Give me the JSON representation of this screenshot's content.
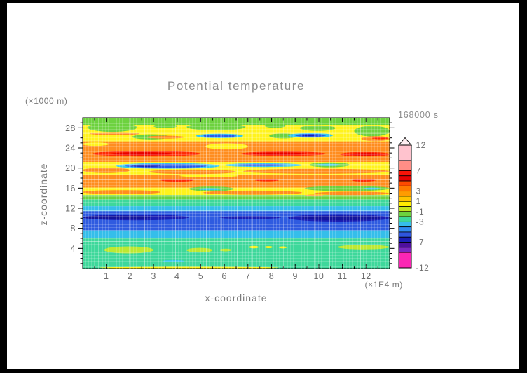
{
  "window": {
    "frame_color": "#000000",
    "page_color": "#ffffff"
  },
  "title": "Potential temperature",
  "time_label": "168000 s",
  "chart_data": {
    "type": "heatmap",
    "subtype": "filled-contour-cross-section",
    "title": "Potential temperature",
    "time_label": "168000 s",
    "xlabel": "x-coordinate",
    "x_unit": "(×1E4 m)",
    "ylabel": "z-coordinate",
    "y_unit": "(×1000 m)",
    "xlim": [
      0,
      13
    ],
    "ylim": [
      0,
      30
    ],
    "x_ticks": [
      1,
      2,
      3,
      4,
      5,
      6,
      7,
      8,
      9,
      10,
      11,
      12
    ],
    "x_minor_step": 0.5,
    "y_ticks": [
      4,
      8,
      12,
      16,
      20,
      24,
      28
    ],
    "y_minor_step": 1,
    "grid": true,
    "legend_position": "right",
    "colorbar": {
      "range": [
        -12,
        12
      ],
      "boundaries": [
        12,
        9,
        7,
        6,
        5,
        4,
        3,
        2,
        1,
        0,
        -1,
        -2,
        -3,
        -4,
        -5,
        -6,
        -7,
        -8,
        -9,
        -12
      ],
      "colors": [
        "#FFC3CE",
        "#FF8E86",
        "#F81408",
        "#E60202",
        "#FF4A00",
        "#FF7A00",
        "#FF9C00",
        "#FFC400",
        "#FFEC00",
        "#C3E51E",
        "#6DD23F",
        "#3ED89B",
        "#35BEEA",
        "#2F8BF0",
        "#2E56DE",
        "#1B1EB4",
        "#4E0F9E",
        "#7B28C2",
        "#FB26B4"
      ],
      "tick_labels": [
        {
          "value": 12,
          "label": "12"
        },
        {
          "value": 7,
          "label": "7"
        },
        {
          "value": 3,
          "label": "3"
        },
        {
          "value": 1,
          "label": "1"
        },
        {
          "value": -1,
          "label": "-1"
        },
        {
          "value": -3,
          "label": "-3"
        },
        {
          "value": -7,
          "label": "-7"
        },
        {
          "value": -12,
          "label": "-12"
        }
      ],
      "arrow_fill": "#FFEFF2"
    },
    "bands": [
      [
        30,
        28.6,
        "#6DD23F"
      ],
      [
        28.6,
        25.3,
        "#FFF31C"
      ],
      [
        25.3,
        21.2,
        "#FF8D1F"
      ],
      [
        21.2,
        18.6,
        "#FFF31C"
      ],
      [
        18.6,
        16.1,
        "#FF8D1F"
      ],
      [
        16.1,
        14.65,
        "#FFF31C"
      ],
      [
        14.65,
        13.75,
        "#6DD23F"
      ],
      [
        13.75,
        12.4,
        "#3ED89B"
      ],
      [
        12.4,
        11.4,
        "#35BEEA"
      ],
      [
        11.4,
        7.6,
        "#2F5BE0"
      ],
      [
        7.6,
        6.1,
        "#35BEEA"
      ],
      [
        6.1,
        0,
        "#3ED89B"
      ]
    ],
    "features": [
      [
        0.2,
        2.3,
        27.2,
        29.0,
        "#6DD23F"
      ],
      [
        3.0,
        4.0,
        27.9,
        28.8,
        "#6DD23F"
      ],
      [
        4.4,
        6.9,
        27.5,
        28.9,
        "#6DD23F"
      ],
      [
        7.7,
        8.6,
        28.0,
        28.85,
        "#6DD23F"
      ],
      [
        9.2,
        10.7,
        27.4,
        28.5,
        "#6DD23F"
      ],
      [
        11.5,
        13,
        26.3,
        28.4,
        "#6DD23F"
      ],
      [
        2.1,
        3.7,
        25.7,
        26.7,
        "#6DD23F"
      ],
      [
        7.9,
        9.1,
        25.9,
        26.9,
        "#6DD23F"
      ],
      [
        0.3,
        2.4,
        26.55,
        27.15,
        "#FF8D1F"
      ],
      [
        2.7,
        4.3,
        25.85,
        26.45,
        "#FF8D1F"
      ],
      [
        11.8,
        13,
        25.35,
        26.35,
        "#FF8D1F"
      ],
      [
        12.25,
        12.95,
        25.75,
        26.15,
        "#FF2B06"
      ],
      [
        4.8,
        6.8,
        25.95,
        26.85,
        "#35C8F0"
      ],
      [
        5.1,
        6.5,
        26.1,
        26.7,
        "#2B5BE8"
      ],
      [
        8.7,
        10.6,
        26.05,
        26.95,
        "#35C8F0"
      ],
      [
        9.0,
        10.3,
        26.2,
        26.8,
        "#2B5BE8"
      ],
      [
        9.3,
        9.9,
        26.35,
        26.62,
        "#1B1EB4"
      ],
      [
        0.4,
        5.0,
        22.3,
        23.4,
        "#FF2B06"
      ],
      [
        1.2,
        3.8,
        22.55,
        23.15,
        "#E80000"
      ],
      [
        6.7,
        10.3,
        22.4,
        23.3,
        "#FF2B06"
      ],
      [
        7.1,
        9.5,
        22.6,
        23.1,
        "#E80000"
      ],
      [
        10.9,
        13,
        22.3,
        23.2,
        "#FF2B06"
      ],
      [
        11.3,
        12.7,
        22.5,
        23.0,
        "#E80000"
      ],
      [
        5.2,
        7.0,
        23.7,
        24.9,
        "#FFF31C"
      ],
      [
        0.0,
        1.1,
        24.4,
        25.1,
        "#FFF31C"
      ],
      [
        0,
        2.0,
        19.0,
        20.1,
        "#FF8D1F"
      ],
      [
        2.8,
        6.5,
        18.8,
        19.7,
        "#FF8D1F"
      ],
      [
        6.8,
        13,
        18.85,
        19.85,
        "#FF8D1F"
      ],
      [
        1.4,
        5.8,
        19.85,
        21.0,
        "#35C8F0"
      ],
      [
        1.8,
        5.3,
        20.05,
        20.8,
        "#2B5BE8"
      ],
      [
        2.1,
        3.3,
        20.25,
        20.62,
        "#1B1EB4"
      ],
      [
        6.0,
        9.3,
        20.2,
        20.95,
        "#35C8F0"
      ],
      [
        6.4,
        8.7,
        20.35,
        20.8,
        "#2B5BE8"
      ],
      [
        9.6,
        11.3,
        20.15,
        21.1,
        "#6DD23F"
      ],
      [
        9.9,
        10.9,
        20.4,
        20.85,
        "#35C8F0"
      ],
      [
        3.3,
        4.7,
        17.3,
        17.85,
        "#FF2B06"
      ],
      [
        7.3,
        8.3,
        17.35,
        17.8,
        "#FF2B06"
      ],
      [
        11.4,
        12.4,
        17.3,
        17.8,
        "#FF2B06"
      ],
      [
        4.1,
        6.6,
        18.2,
        18.7,
        "#FFF31C"
      ],
      [
        0,
        3.3,
        14.8,
        15.6,
        "#FF8D1F"
      ],
      [
        5.1,
        9.3,
        14.7,
        15.5,
        "#FF8D1F"
      ],
      [
        9.8,
        13,
        14.6,
        15.3,
        "#FF8D1F"
      ],
      [
        4.5,
        6.4,
        15.4,
        16.3,
        "#6DD23F"
      ],
      [
        4.9,
        5.9,
        15.6,
        16.0,
        "#35C8F0"
      ],
      [
        9.4,
        13,
        15.4,
        16.45,
        "#6DD23F"
      ],
      [
        11.9,
        12.6,
        15.7,
        16.1,
        "#35C8F0"
      ],
      [
        9.4,
        10.2,
        14.35,
        14.72,
        "#FF8D1F"
      ],
      [
        0,
        4.5,
        9.6,
        10.75,
        "#1B1EB4"
      ],
      [
        0.0,
        2.9,
        9.8,
        10.55,
        "#14149B"
      ],
      [
        5.8,
        8.4,
        9.85,
        10.45,
        "#1B1EB4"
      ],
      [
        8.7,
        13,
        9.35,
        10.8,
        "#1B1EB4"
      ],
      [
        9.3,
        12.6,
        9.6,
        10.5,
        "#14149B"
      ],
      [
        0.9,
        3.0,
        3.0,
        4.4,
        "#BDE832"
      ],
      [
        4.4,
        5.5,
        3.2,
        4.1,
        "#BDE832"
      ],
      [
        5.8,
        6.3,
        3.4,
        3.95,
        "#BDE832"
      ],
      [
        7.05,
        7.45,
        4.0,
        4.5,
        "#FFF31C"
      ],
      [
        7.7,
        8.05,
        4.05,
        4.45,
        "#FFF31C"
      ],
      [
        8.3,
        8.65,
        4.0,
        4.4,
        "#FFF31C"
      ],
      [
        10.8,
        13,
        3.8,
        4.7,
        "#BDE832"
      ],
      [
        3.4,
        4.3,
        1.25,
        1.7,
        "#35C8F0"
      ],
      [
        0.7,
        8.3,
        0,
        0.35,
        "#FFF31C"
      ]
    ]
  },
  "colors": {
    "title_text": "#8c8c8c",
    "tick_text": "#6e6e6e",
    "axis_text": "#7a7a7a",
    "plot_border": "#000000"
  }
}
